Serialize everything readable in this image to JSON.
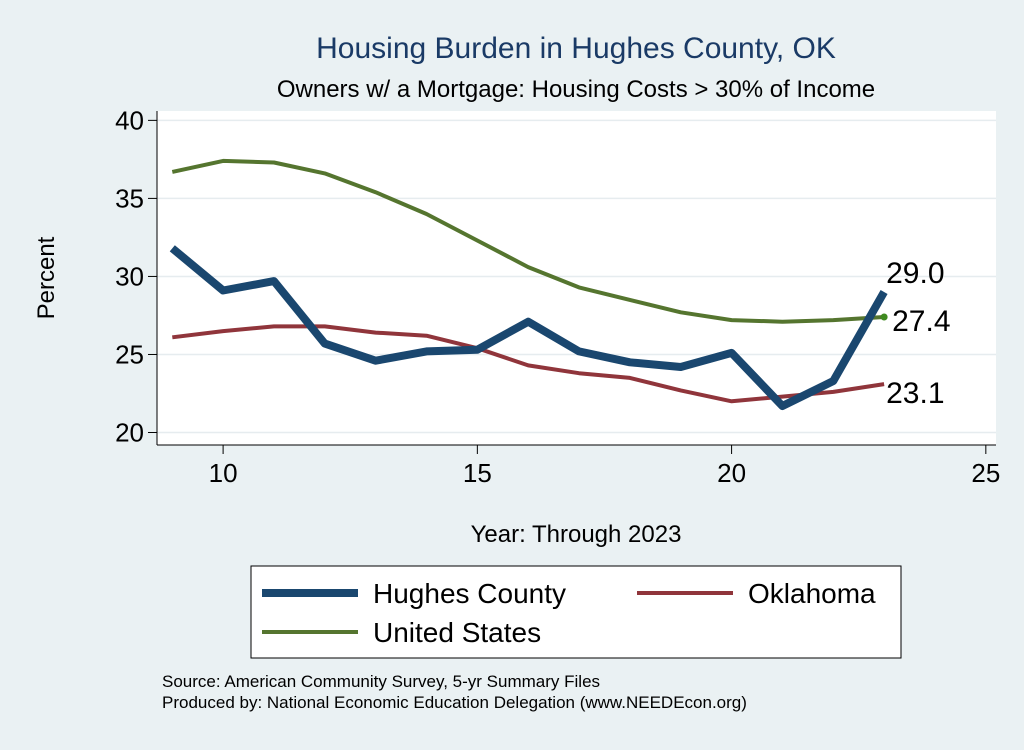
{
  "chart_data": {
    "type": "line",
    "title": "Housing Burden in Hughes County, OK",
    "subtitle": "Owners w/ a Mortgage: Housing Costs > 30% of Income",
    "xlabel": "Year: Through 2023",
    "ylabel": "Percent",
    "xlim": [
      8.7,
      25.2
    ],
    "ylim": [
      19.2,
      40.6
    ],
    "xticks": [
      10,
      15,
      20,
      25
    ],
    "yticks": [
      20,
      25,
      30,
      35,
      40
    ],
    "grid": true,
    "legend_position": "bottom",
    "series": [
      {
        "name": "Hughes County",
        "color": "#1a476f",
        "x": [
          9,
          10,
          11,
          12,
          13,
          14,
          15,
          16,
          17,
          18,
          19,
          20,
          21,
          22,
          23
        ],
        "values": [
          31.8,
          29.1,
          29.7,
          25.7,
          24.6,
          25.2,
          25.3,
          27.1,
          25.2,
          24.5,
          24.2,
          25.1,
          21.7,
          23.3,
          29.0
        ],
        "end_label": "29.0"
      },
      {
        "name": "Oklahoma",
        "color": "#90353b",
        "x": [
          9,
          10,
          11,
          12,
          13,
          14,
          15,
          16,
          17,
          18,
          19,
          20,
          21,
          22,
          23
        ],
        "values": [
          26.1,
          26.5,
          26.8,
          26.8,
          26.4,
          26.2,
          25.4,
          24.3,
          23.8,
          23.5,
          22.7,
          22.0,
          22.3,
          22.6,
          23.1
        ],
        "end_label": "23.1"
      },
      {
        "name": "United States",
        "color": "#55752f",
        "x": [
          9,
          10,
          11,
          12,
          13,
          14,
          15,
          16,
          17,
          18,
          19,
          20,
          21,
          22,
          23
        ],
        "values": [
          36.7,
          37.4,
          37.3,
          36.6,
          35.4,
          34.0,
          32.3,
          30.6,
          29.3,
          28.5,
          27.7,
          27.2,
          27.1,
          27.2,
          27.4
        ],
        "end_label": "27.4"
      }
    ]
  },
  "notes": {
    "source": "Source: American Community Survey, 5-yr Summary Files",
    "produced_by": "Produced by: National Economic Education Delegation (www.NEEDEcon.org)"
  }
}
